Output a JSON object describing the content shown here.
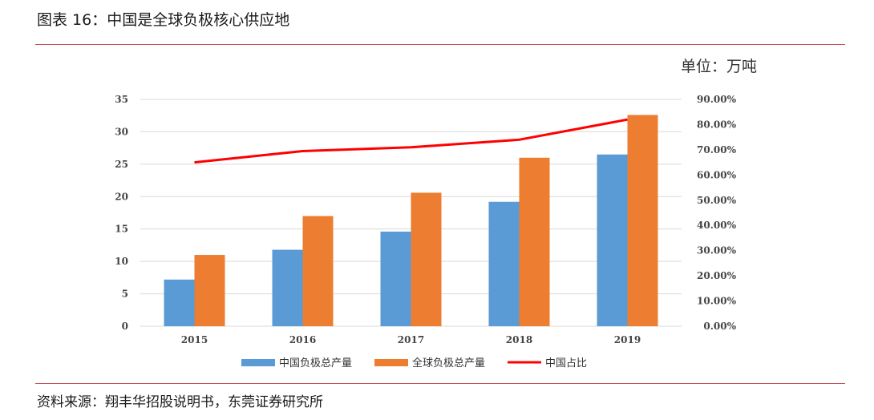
{
  "header": {
    "title": "图表 16：中国是全球负极核心供应地"
  },
  "unit_label": "单位：万吨",
  "footer": {
    "source": "资料来源：翔丰华招股说明书，东莞证券研究所"
  },
  "chart_data": {
    "type": "bar",
    "categories": [
      "2015",
      "2016",
      "2017",
      "2018",
      "2019"
    ],
    "series": [
      {
        "name": "中国负极总产量",
        "kind": "bar",
        "axis": "left",
        "color": "#5B9BD5",
        "values": [
          7.2,
          11.8,
          14.6,
          19.2,
          26.5
        ]
      },
      {
        "name": "全球负极总产量",
        "kind": "bar",
        "axis": "left",
        "color": "#ED7D31",
        "values": [
          11.0,
          17.0,
          20.6,
          26.0,
          32.6
        ]
      },
      {
        "name": "中国占比",
        "kind": "line",
        "axis": "right",
        "color": "#FF0000",
        "values": [
          0.65,
          0.695,
          0.71,
          0.74,
          0.82
        ]
      }
    ],
    "y_left": {
      "ylim": [
        0,
        35
      ],
      "ticks": [
        "0",
        "5",
        "10",
        "15",
        "20",
        "25",
        "30",
        "35"
      ]
    },
    "y_right": {
      "ylim": [
        0,
        0.9
      ],
      "ticks": [
        "0.00%",
        "10.00%",
        "20.00%",
        "30.00%",
        "40.00%",
        "50.00%",
        "60.00%",
        "70.00%",
        "80.00%",
        "90.00%"
      ]
    },
    "grid": true,
    "legend_position": "bottom"
  }
}
